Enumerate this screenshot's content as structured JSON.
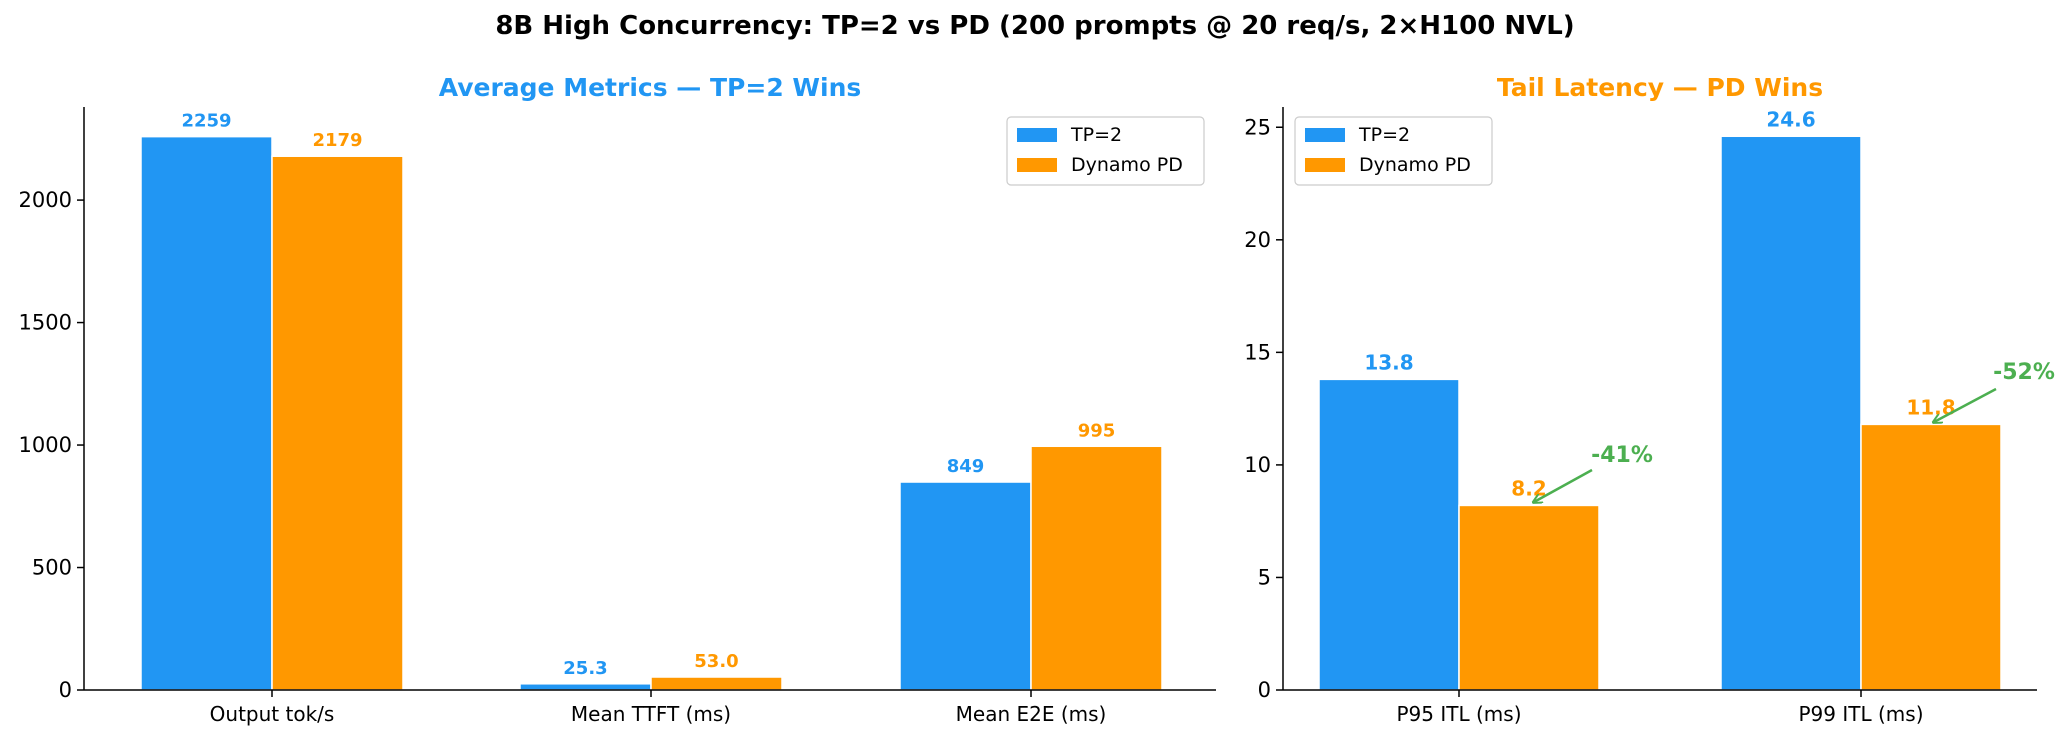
{
  "figure_title": "8B High Concurrency: TP=2 vs PD (200 prompts @ 20 req/s, 2×H100 NVL)",
  "colors": {
    "tp2": "#2196F3",
    "dynamo_pd": "#FF9800",
    "annotation": "#4CAF50",
    "axis": "#000000"
  },
  "chart_data": [
    {
      "type": "bar",
      "title": "Average Metrics — TP=2 Wins",
      "title_color": "#2196F3",
      "categories": [
        "Output tok/s",
        "Mean TTFT (ms)",
        "Mean E2E (ms)"
      ],
      "series": [
        {
          "name": "TP=2",
          "color": "#2196F3",
          "values": [
            2259,
            25.3,
            849
          ],
          "labels": [
            "2259",
            "25.3",
            "849"
          ]
        },
        {
          "name": "Dynamo PD",
          "color": "#FF9800",
          "values": [
            2179,
            53.0,
            995
          ],
          "labels": [
            "2179",
            "53.0",
            "995"
          ]
        }
      ],
      "ylim": [
        0,
        2380
      ],
      "yticks": [
        0,
        500,
        1000,
        1500,
        2000
      ],
      "grid": false,
      "legend": "top-right",
      "annotations": []
    },
    {
      "type": "bar",
      "title": "Tail Latency — PD Wins",
      "title_color": "#FF9800",
      "categories": [
        "P95 ITL (ms)",
        "P99 ITL (ms)"
      ],
      "series": [
        {
          "name": "TP=2",
          "color": "#2196F3",
          "values": [
            13.8,
            24.6
          ],
          "labels": [
            "13.8",
            "24.6"
          ]
        },
        {
          "name": "Dynamo PD",
          "color": "#FF9800",
          "values": [
            8.2,
            11.8
          ],
          "labels": [
            "8.2",
            "11.8"
          ]
        }
      ],
      "ylim": [
        0,
        25.9
      ],
      "yticks": [
        0,
        5,
        10,
        15,
        20,
        25
      ],
      "grid": false,
      "legend": "top-left",
      "annotations": [
        {
          "text": "-41%",
          "category": 0,
          "series": 1,
          "color": "#4CAF50"
        },
        {
          "text": "-52%",
          "category": 1,
          "series": 1,
          "color": "#4CAF50"
        }
      ]
    }
  ]
}
